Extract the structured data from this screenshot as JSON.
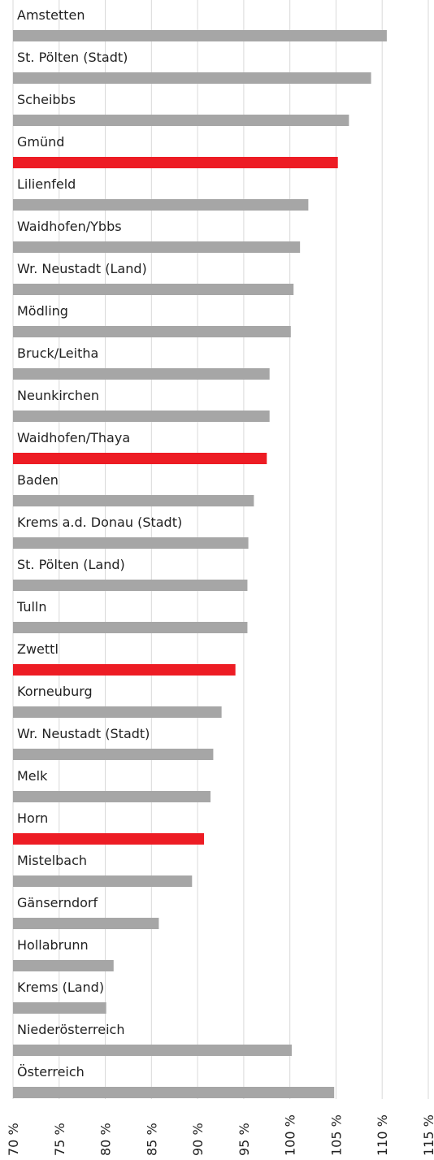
{
  "chart_data": {
    "type": "bar",
    "orientation": "horizontal",
    "categories": [
      "Amstetten",
      "St. Pölten (Stadt)",
      "Scheibbs",
      "Gmünd",
      "Lilienfeld",
      "Waidhofen/Ybbs",
      "Wr. Neustadt (Land)",
      "Mödling",
      "Bruck/Leitha",
      "Neunkirchen",
      "Waidhofen/Thaya",
      "Baden",
      "Krems a.d. Donau (Stadt)",
      "St. Pölten (Land)",
      "Tulln",
      "Zwettl",
      "Korneuburg",
      "Wr. Neustadt (Stadt)",
      "Melk",
      "Horn",
      "Mistelbach",
      "Gänserndorf",
      "Hollabrunn",
      "Krems (Land)",
      "Niederösterreich",
      "Österreich"
    ],
    "values": [
      110.5,
      108.8,
      106.4,
      105.2,
      102.0,
      101.1,
      100.4,
      100.1,
      97.8,
      97.8,
      97.5,
      96.1,
      95.5,
      95.4,
      95.4,
      94.1,
      92.6,
      91.7,
      91.4,
      90.7,
      89.4,
      85.8,
      80.9,
      80.1,
      100.2,
      104.8
    ],
    "colors": [
      "#a6a6a6",
      "#a6a6a6",
      "#a6a6a6",
      "#ed1c24",
      "#a6a6a6",
      "#a6a6a6",
      "#a6a6a6",
      "#a6a6a6",
      "#a6a6a6",
      "#a6a6a6",
      "#ed1c24",
      "#a6a6a6",
      "#a6a6a6",
      "#a6a6a6",
      "#a6a6a6",
      "#ed1c24",
      "#a6a6a6",
      "#a6a6a6",
      "#a6a6a6",
      "#ed1c24",
      "#a6a6a6",
      "#a6a6a6",
      "#a6a6a6",
      "#a6a6a6",
      "#a6a6a6",
      "#a6a6a6"
    ],
    "xlim": [
      70,
      115
    ],
    "xticks": [
      {
        "value": 70,
        "label": "70 %"
      },
      {
        "value": 75,
        "label": "75 %"
      },
      {
        "value": 80,
        "label": "80 %"
      },
      {
        "value": 85,
        "label": "85 %"
      },
      {
        "value": 90,
        "label": "90 %"
      },
      {
        "value": 95,
        "label": "95 %"
      },
      {
        "value": 100,
        "label": "100 %"
      },
      {
        "value": 105,
        "label": "105 %"
      },
      {
        "value": 110,
        "label": "110 %"
      },
      {
        "value": 115,
        "label": "115 %"
      }
    ],
    "grid": true
  }
}
